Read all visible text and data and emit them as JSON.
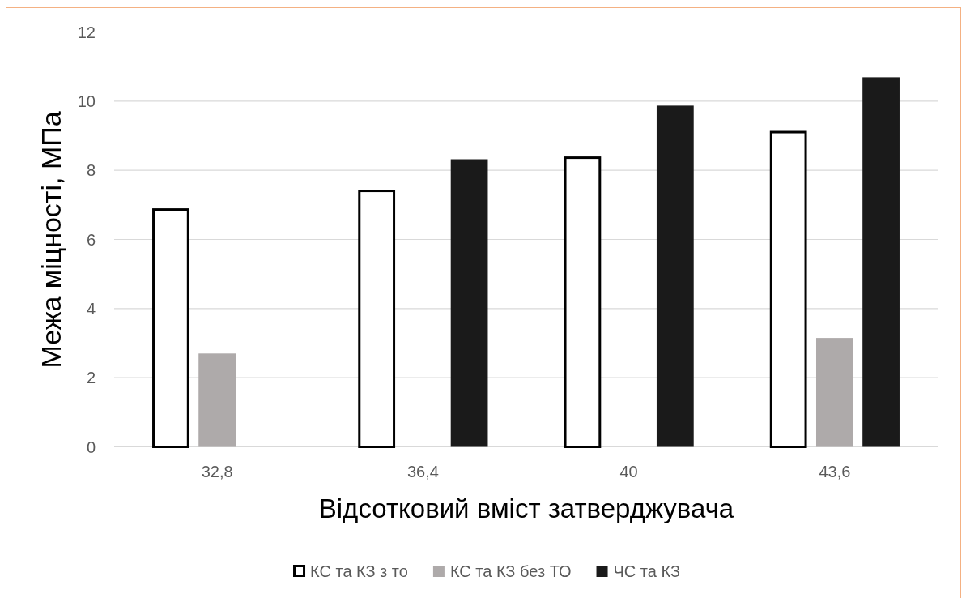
{
  "chart_data": {
    "type": "bar",
    "xlabel": "Відсотковий вміст затверджувача",
    "ylabel": "Межа міцності, МПа",
    "categories": [
      "32,8",
      "36,4",
      "40",
      "43,6"
    ],
    "series": [
      {
        "name": "КС та КЗ з то",
        "color": "#ffffff",
        "values": [
          6.9,
          7.44,
          8.4,
          9.14
        ]
      },
      {
        "name": "КС та КЗ без ТО",
        "color": "#aeaaaa",
        "values": [
          2.7,
          null,
          null,
          3.15
        ]
      },
      {
        "name": "ЧС та КЗ",
        "color": "#1a1a1a",
        "values": [
          null,
          8.32,
          9.87,
          10.69
        ]
      }
    ],
    "ylim": [
      0,
      12
    ],
    "yticks": [
      0,
      2,
      4,
      6,
      8,
      10,
      12
    ],
    "grid": "y",
    "legend": "bottom"
  }
}
